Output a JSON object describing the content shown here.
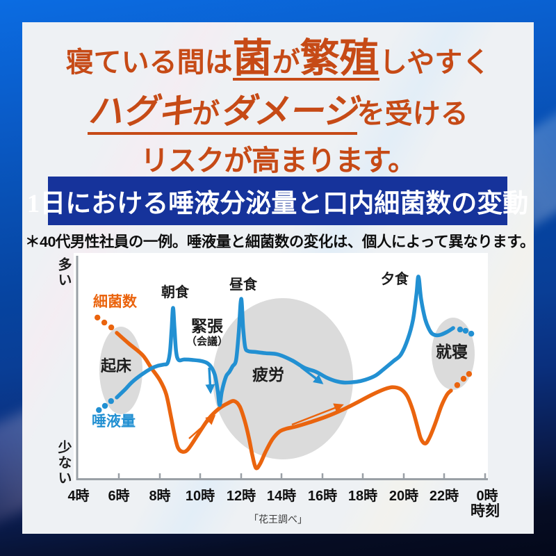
{
  "headline": {
    "line1": {
      "pre": "寝ている間は",
      "em1": "菌",
      "mid": "が",
      "em2": "繁殖",
      "post": "しやすく"
    },
    "line2": {
      "em1": "ハグキ",
      "mid": "が",
      "em2": "ダメージ",
      "post": "を受ける"
    },
    "line3": "リスクが高まります。",
    "color": "#c64a16"
  },
  "banner": {
    "title": "1日における唾液分泌量と口内細菌数の変動",
    "bg": "#16339b",
    "text_color": "#ffffff"
  },
  "note": "＊40代男性社員の一例。唾液量と細菌数の変化は、個人によって異なります。",
  "chart": {
    "y_top_label": "多い",
    "y_bottom_label": "少ない",
    "x_ticks": [
      "4時",
      "6時",
      "8時",
      "10時",
      "12時",
      "14時",
      "16時",
      "18時",
      "20時",
      "22時",
      "0時"
    ],
    "x_axis_label": "時刻",
    "caption": "「花王調べ」",
    "series_labels": {
      "bacteria": "細菌数",
      "saliva": "唾液量"
    },
    "annotations": {
      "wake": "起床",
      "breakfast": "朝食",
      "tension": "緊張",
      "meeting": "（会議）",
      "lunch": "昼食",
      "fatigue": "疲労",
      "dinner": "夕食",
      "sleep": "就寝"
    },
    "colors": {
      "saliva": "#2290d2",
      "bacteria": "#ea640e",
      "ellipse": "#dbdbdb",
      "axis": "#9aa0a6"
    }
  },
  "chart_data": {
    "type": "line",
    "x_unit": "hour_of_day",
    "x_range": [
      4,
      24
    ],
    "y_unit": "relative_level_0_100",
    "title": "1日における唾液分泌量と口内細菌数の変動",
    "source": "「花王調べ」",
    "legend_position": "inline-left",
    "grid": false,
    "annotations": [
      {
        "label": "起床",
        "hour": 6.1
      },
      {
        "label": "朝食",
        "hour": 8.7
      },
      {
        "label": "緊張（会議）",
        "hour": 10.9
      },
      {
        "label": "昼食",
        "hour": 12.0
      },
      {
        "label": "疲労",
        "hour": 13.9
      },
      {
        "label": "夕食",
        "hour": 20.7
      },
      {
        "label": "就寝",
        "hour": 22.8
      }
    ],
    "series": [
      {
        "name": "唾液量",
        "key": "saliva",
        "points": [
          [
            5.88,
            39.1
          ],
          [
            6.3,
            43.0
          ],
          [
            6.63,
            46.4
          ],
          [
            7.1,
            50.0
          ],
          [
            7.59,
            53.0
          ],
          [
            7.9,
            54.2
          ],
          [
            8.2,
            54.8
          ],
          [
            8.38,
            55.5
          ],
          [
            8.5,
            61.0
          ],
          [
            8.58,
            72.0
          ],
          [
            8.65,
            81.8
          ],
          [
            8.72,
            72.0
          ],
          [
            8.8,
            61.0
          ],
          [
            8.92,
            57.0
          ],
          [
            9.2,
            57.2
          ],
          [
            9.6,
            57.0
          ],
          [
            10.12,
            56.3
          ],
          [
            10.45,
            54.5
          ],
          [
            10.7,
            50.0
          ],
          [
            10.85,
            42.0
          ],
          [
            10.94,
            35.5
          ],
          [
            11.05,
            42.0
          ],
          [
            11.25,
            49.0
          ],
          [
            11.42,
            51.3
          ],
          [
            11.58,
            54.0
          ],
          [
            11.75,
            57.0
          ],
          [
            11.88,
            70.0
          ],
          [
            12.0,
            86.1
          ],
          [
            12.1,
            72.0
          ],
          [
            12.2,
            63.0
          ],
          [
            12.35,
            61.2
          ],
          [
            12.7,
            60.8
          ],
          [
            13.2,
            60.2
          ],
          [
            13.81,
            59.6
          ],
          [
            14.5,
            56.8
          ],
          [
            15.1,
            53.3
          ],
          [
            15.69,
            51.3
          ],
          [
            16.2,
            48.6
          ],
          [
            16.7,
            46.8
          ],
          [
            17.1,
            46.2
          ],
          [
            17.68,
            46.6
          ],
          [
            18.1,
            47.5
          ],
          [
            18.6,
            49.5
          ],
          [
            19.0,
            52.5
          ],
          [
            19.5,
            56.5
          ],
          [
            19.86,
            59.6
          ],
          [
            20.2,
            67.0
          ],
          [
            20.45,
            76.0
          ],
          [
            20.62,
            88.0
          ],
          [
            20.72,
            96.7
          ],
          [
            20.85,
            86.0
          ],
          [
            21.05,
            76.5
          ],
          [
            21.25,
            71.5
          ],
          [
            21.44,
            69.2
          ],
          [
            21.74,
            68.8
          ],
          [
            22.1,
            70.2
          ],
          [
            22.43,
            72.2
          ]
        ],
        "start_dots": [
          [
            5.0,
            33.1
          ],
          [
            5.3,
            35.1
          ],
          [
            5.6,
            37.4
          ]
        ],
        "end_dots": [
          [
            22.77,
            71.5
          ],
          [
            23.04,
            70.9
          ],
          [
            23.32,
            69.5
          ]
        ]
      },
      {
        "name": "細菌数",
        "key": "bacteria",
        "points": [
          [
            5.88,
            69.9
          ],
          [
            6.46,
            64.9
          ],
          [
            7.15,
            59.3
          ],
          [
            7.59,
            53.0
          ],
          [
            8.0,
            47.4
          ],
          [
            8.31,
            40.7
          ],
          [
            8.55,
            29.8
          ],
          [
            8.72,
            21.5
          ],
          [
            8.89,
            15.2
          ],
          [
            9.13,
            13.2
          ],
          [
            9.4,
            14.6
          ],
          [
            9.88,
            21.5
          ],
          [
            10.39,
            28.8
          ],
          [
            10.91,
            33.8
          ],
          [
            11.35,
            36.4
          ],
          [
            11.66,
            37.4
          ],
          [
            11.93,
            34.8
          ],
          [
            12.17,
            28.1
          ],
          [
            12.38,
            19.9
          ],
          [
            12.55,
            11.6
          ],
          [
            12.72,
            5.6
          ],
          [
            12.92,
            7.3
          ],
          [
            13.2,
            13.2
          ],
          [
            13.54,
            19.2
          ],
          [
            13.88,
            22.8
          ],
          [
            14.22,
            24.2
          ],
          [
            14.67,
            25.2
          ],
          [
            15.35,
            27.2
          ],
          [
            16.14,
            29.8
          ],
          [
            16.89,
            32.8
          ],
          [
            17.64,
            36.4
          ],
          [
            18.43,
            40.4
          ],
          [
            19.04,
            43.0
          ],
          [
            19.45,
            44.0
          ],
          [
            19.86,
            43.0
          ],
          [
            20.17,
            39.7
          ],
          [
            20.44,
            33.1
          ],
          [
            20.68,
            24.8
          ],
          [
            20.85,
            19.2
          ],
          [
            21.06,
            17.2
          ],
          [
            21.26,
            19.9
          ],
          [
            21.54,
            26.5
          ],
          [
            21.84,
            34.8
          ],
          [
            22.12,
            40.4
          ],
          [
            22.32,
            42.4
          ]
        ],
        "start_dots": [
          [
            4.93,
            77.2
          ],
          [
            5.27,
            74.8
          ],
          [
            5.61,
            72.5
          ]
        ],
        "end_dots": [
          [
            22.63,
            45.0
          ],
          [
            22.94,
            48.0
          ],
          [
            23.21,
            50.3
          ]
        ]
      }
    ]
  }
}
